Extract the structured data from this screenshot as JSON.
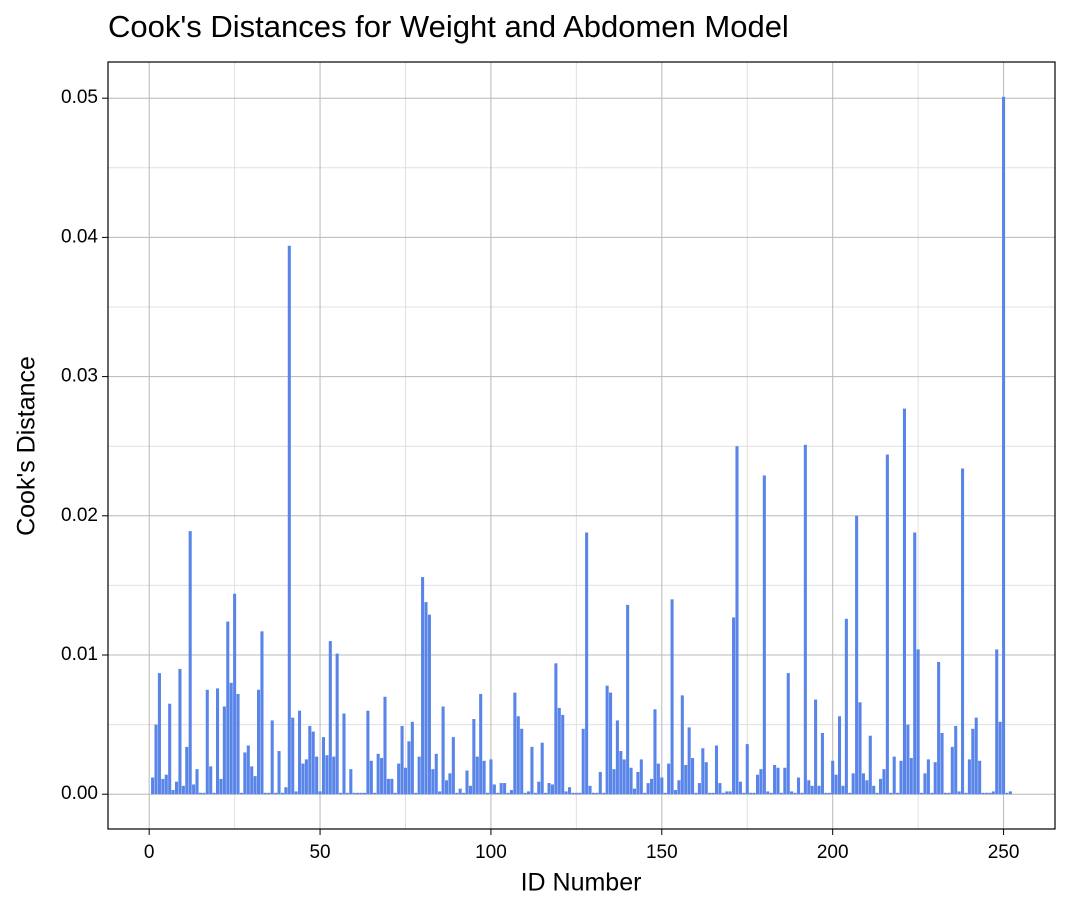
{
  "chart_data": {
    "type": "bar",
    "title": "Cook's Distances for Weight and Abdomen Model",
    "x_label": "ID Number",
    "y_label": "Cook's Distance",
    "color": "#5a85e8",
    "grid": true,
    "xlim": [
      -12.05,
      265.05
    ],
    "ylim": [
      -0.0025,
      0.0526
    ],
    "xticks": [
      0,
      50,
      100,
      150,
      200,
      250
    ],
    "yticks": [
      {
        "value": 0,
        "label": "0.00"
      },
      0.01,
      0.02,
      0.03,
      0.04,
      0.05
    ],
    "x_minor_grid": [
      25,
      75,
      125,
      175,
      225
    ],
    "y_minor_grid": [
      0.005,
      0.015,
      0.025,
      0.035,
      0.045
    ],
    "x": [
      1,
      2,
      3,
      4,
      5,
      6,
      7,
      8,
      9,
      10,
      11,
      12,
      13,
      14,
      15,
      16,
      17,
      18,
      19,
      20,
      21,
      22,
      23,
      24,
      25,
      26,
      27,
      28,
      29,
      30,
      31,
      32,
      33,
      34,
      35,
      36,
      37,
      38,
      39,
      40,
      41,
      42,
      43,
      44,
      45,
      46,
      47,
      48,
      49,
      50,
      51,
      52,
      53,
      54,
      55,
      56,
      57,
      58,
      59,
      60,
      61,
      62,
      63,
      64,
      65,
      66,
      67,
      68,
      69,
      70,
      71,
      72,
      73,
      74,
      75,
      76,
      77,
      78,
      79,
      80,
      81,
      82,
      83,
      84,
      85,
      86,
      87,
      88,
      89,
      90,
      91,
      92,
      93,
      94,
      95,
      96,
      97,
      98,
      99,
      100,
      101,
      102,
      103,
      104,
      105,
      106,
      107,
      108,
      109,
      110,
      111,
      112,
      113,
      114,
      115,
      116,
      117,
      118,
      119,
      120,
      121,
      122,
      123,
      124,
      125,
      126,
      127,
      128,
      129,
      130,
      131,
      132,
      133,
      134,
      135,
      136,
      137,
      138,
      139,
      140,
      141,
      142,
      143,
      144,
      145,
      146,
      147,
      148,
      149,
      150,
      151,
      152,
      153,
      154,
      155,
      156,
      157,
      158,
      159,
      160,
      161,
      162,
      163,
      164,
      165,
      166,
      167,
      168,
      169,
      170,
      171,
      172,
      173,
      174,
      175,
      176,
      177,
      178,
      179,
      180,
      181,
      182,
      183,
      184,
      185,
      186,
      187,
      188,
      189,
      190,
      191,
      192,
      193,
      194,
      195,
      196,
      197,
      198,
      199,
      200,
      201,
      202,
      203,
      204,
      205,
      206,
      207,
      208,
      209,
      210,
      211,
      212,
      213,
      214,
      215,
      216,
      217,
      218,
      219,
      220,
      221,
      222,
      223,
      224,
      225,
      226,
      227,
      228,
      229,
      230,
      231,
      232,
      233,
      234,
      235,
      236,
      237,
      238,
      239,
      240,
      241,
      242,
      243,
      244,
      245,
      246,
      247,
      248,
      249,
      250,
      251,
      252
    ],
    "values": [
      0.0012,
      0.005,
      0.0087,
      0.0011,
      0.0014,
      0.0065,
      0.0003,
      0.0009,
      0.009,
      0.0006,
      0.0034,
      0.0189,
      0.0007,
      0.0018,
      0.0001,
      0.0001,
      0.0075,
      0.002,
      0.0001,
      0.0076,
      0.0011,
      0.0063,
      0.0124,
      0.008,
      0.0144,
      0.0072,
      0.0001,
      0.003,
      0.0035,
      0.002,
      0.0013,
      0.0075,
      0.0117,
      0.0001,
      0.0001,
      0.0053,
      0.0001,
      0.0031,
      0.0001,
      0.0005,
      0.0394,
      0.0055,
      0.0002,
      0.006,
      0.0022,
      0.0025,
      0.0049,
      0.0045,
      0.0027,
      0.0002,
      0.0041,
      0.0028,
      0.011,
      0.0027,
      0.0101,
      0.0001,
      0.0058,
      0.0001,
      0.0018,
      0.0001,
      0.0001,
      0.0001,
      0.0001,
      0.006,
      0.0024,
      0.0001,
      0.0029,
      0.0026,
      0.007,
      0.0011,
      0.0011,
      0.0001,
      0.0022,
      0.0049,
      0.0019,
      0.0038,
      0.0052,
      0.0001,
      0.0027,
      0.0156,
      0.0138,
      0.0129,
      0.0018,
      0.0029,
      0.0002,
      0.0063,
      0.001,
      0.0015,
      0.0041,
      0.0001,
      0.0004,
      0.0001,
      0.0017,
      0.0006,
      0.0054,
      0.0027,
      0.0072,
      0.0024,
      0.0001,
      0.0025,
      0.0007,
      0.0001,
      0.0008,
      0.0008,
      0.0001,
      0.0003,
      0.0073,
      0.0056,
      0.0047,
      0.0001,
      0.0002,
      0.0034,
      0.0001,
      0.0009,
      0.0037,
      0.0001,
      0.0008,
      0.0007,
      0.0094,
      0.0062,
      0.0057,
      0.0002,
      0.0005,
      0.0001,
      0.0001,
      0.0001,
      0.0047,
      0.0188,
      0.0006,
      0.0001,
      0.0001,
      0.0016,
      0.0001,
      0.0078,
      0.0073,
      0.0018,
      0.0053,
      0.0031,
      0.0025,
      0.0136,
      0.0019,
      0.0004,
      0.0016,
      0.0025,
      0.0001,
      0.0008,
      0.0011,
      0.0061,
      0.0022,
      0.0012,
      0.0001,
      0.0022,
      0.014,
      0.0003,
      0.001,
      0.0071,
      0.0021,
      0.0048,
      0.0026,
      0.0001,
      0.0008,
      0.0033,
      0.0023,
      0.0001,
      0.0001,
      0.0035,
      0.0008,
      0.0001,
      0.0002,
      0.0002,
      0.0127,
      0.025,
      0.0009,
      0.0001,
      0.0036,
      0.0001,
      0.0001,
      0.0014,
      0.0018,
      0.0229,
      0.0002,
      0.0001,
      0.0021,
      0.0019,
      0.0001,
      0.0019,
      0.0087,
      0.0002,
      0.0001,
      0.0012,
      0.0001,
      0.0251,
      0.001,
      0.0006,
      0.0068,
      0.0006,
      0.0044,
      0.0001,
      0.0001,
      0.0024,
      0.0014,
      0.0056,
      0.0006,
      0.0126,
      0.0001,
      0.0015,
      0.02,
      0.0066,
      0.0015,
      0.001,
      0.0042,
      0.0006,
      0.0001,
      0.0011,
      0.0018,
      0.0244,
      0.0001,
      0.0027,
      0.0001,
      0.0024,
      0.0277,
      0.005,
      0.0026,
      0.0188,
      0.0104,
      0.0001,
      0.0015,
      0.0025,
      0.0001,
      0.0023,
      0.0095,
      0.0044,
      0.0001,
      0.0001,
      0.0034,
      0.0049,
      0.0002,
      0.0234,
      0.0001,
      0.0025,
      0.0047,
      0.0055,
      0.0024,
      0.0001,
      0.0001,
      0.0001,
      0.0002,
      0.0104,
      0.0052,
      0.0501,
      0.0001,
      0.0002
    ]
  }
}
